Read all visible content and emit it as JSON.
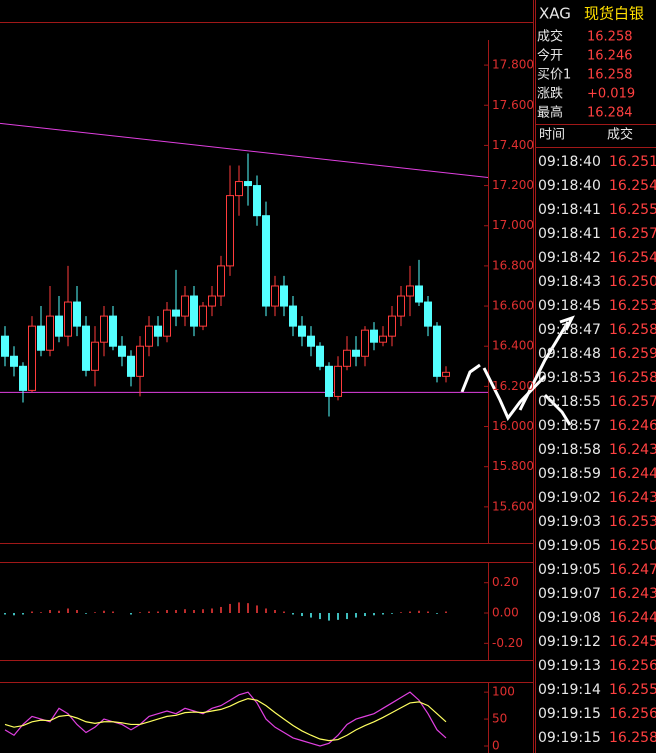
{
  "header": {
    "symbol": "XAG",
    "name": "现货白银"
  },
  "quote": [
    {
      "label": "成交",
      "value": "16.258"
    },
    {
      "label": "今开",
      "value": "16.246"
    },
    {
      "label": "买价1",
      "value": "16.258"
    },
    {
      "label": "涨跌",
      "value": "+0.019"
    },
    {
      "label": "最高",
      "value": "16.284"
    }
  ],
  "trades": {
    "columns": [
      "时间",
      "成交"
    ],
    "rows": [
      [
        "09:18:40",
        "16.251"
      ],
      [
        "09:18:40",
        "16.254"
      ],
      [
        "09:18:41",
        "16.255"
      ],
      [
        "09:18:41",
        "16.257"
      ],
      [
        "09:18:42",
        "16.254"
      ],
      [
        "09:18:43",
        "16.250"
      ],
      [
        "09:18:45",
        "16.253"
      ],
      [
        "09:18:47",
        "16.258"
      ],
      [
        "09:18:48",
        "16.259"
      ],
      [
        "09:18:53",
        "16.258"
      ],
      [
        "09:18:55",
        "16.257"
      ],
      [
        "09:18:57",
        "16.246"
      ],
      [
        "09:18:58",
        "16.243"
      ],
      [
        "09:18:59",
        "16.244"
      ],
      [
        "09:19:02",
        "16.243"
      ],
      [
        "09:19:03",
        "16.253"
      ],
      [
        "09:19:05",
        "16.250"
      ],
      [
        "09:19:05",
        "16.247"
      ],
      [
        "09:19:07",
        "16.243"
      ],
      [
        "09:19:08",
        "16.244"
      ],
      [
        "09:19:12",
        "16.245"
      ],
      [
        "09:19:13",
        "16.256"
      ],
      [
        "09:19:14",
        "16.255"
      ],
      [
        "09:19:15",
        "16.256"
      ],
      [
        "09:19:15",
        "16.258"
      ]
    ]
  },
  "chart_data": [
    {
      "type": "candlestick",
      "up_color": "#ff3c3c",
      "down_color": "#54ffff",
      "ylim": [
        15.42,
        17.915
      ],
      "yticks": [
        {
          "value": 17.8,
          "label": "17.800"
        },
        {
          "value": 17.6,
          "label": "17.600"
        },
        {
          "value": 17.4,
          "label": "17.400"
        },
        {
          "value": 17.2,
          "label": "17.200"
        },
        {
          "value": 17.0,
          "label": "17.000"
        },
        {
          "value": 16.8,
          "label": "16.800"
        },
        {
          "value": 16.6,
          "label": "16.600"
        },
        {
          "value": 16.4,
          "label": "16.400"
        },
        {
          "value": 16.2,
          "label": "16.200"
        },
        {
          "value": 16.0,
          "label": "16.000"
        },
        {
          "value": 15.8,
          "label": "15.800"
        },
        {
          "value": 15.6,
          "label": "15.600"
        }
      ],
      "open": [
        16.45,
        16.35,
        16.3,
        16.18,
        16.5,
        16.38,
        16.55,
        16.45,
        16.62,
        16.5,
        16.28,
        16.42,
        16.55,
        16.4,
        16.35,
        16.25,
        16.4,
        16.5,
        16.45,
        16.58,
        16.55,
        16.65,
        16.5,
        16.6,
        16.65,
        16.8,
        17.15,
        17.22,
        17.2,
        17.05,
        16.6,
        16.7,
        16.6,
        16.5,
        16.45,
        16.4,
        16.3,
        16.15,
        16.3,
        16.38,
        16.35,
        16.48,
        16.42,
        16.45,
        16.55,
        16.65,
        16.7,
        16.62,
        16.5,
        16.25
      ],
      "high": [
        16.5,
        16.4,
        16.32,
        16.55,
        16.6,
        16.7,
        16.65,
        16.8,
        16.7,
        16.55,
        16.5,
        16.6,
        16.6,
        16.45,
        16.38,
        16.45,
        16.55,
        16.55,
        16.62,
        16.78,
        16.7,
        16.7,
        16.62,
        16.7,
        16.85,
        17.3,
        17.3,
        17.36,
        17.25,
        17.12,
        16.75,
        16.75,
        16.65,
        16.55,
        16.5,
        16.42,
        16.32,
        16.35,
        16.45,
        16.45,
        16.5,
        16.52,
        16.5,
        16.6,
        16.7,
        16.8,
        16.83,
        16.65,
        16.52,
        16.3
      ],
      "low": [
        16.3,
        16.25,
        16.12,
        16.17,
        16.35,
        16.35,
        16.42,
        16.4,
        16.45,
        16.25,
        16.2,
        16.35,
        16.38,
        16.3,
        16.2,
        16.15,
        16.35,
        16.4,
        16.42,
        16.5,
        16.5,
        16.45,
        16.48,
        16.55,
        16.6,
        16.75,
        17.05,
        17.1,
        17.0,
        16.55,
        16.55,
        16.55,
        16.45,
        16.4,
        16.35,
        16.28,
        16.05,
        16.13,
        16.28,
        16.3,
        16.3,
        16.38,
        16.4,
        16.4,
        16.5,
        16.55,
        16.6,
        16.45,
        16.22,
        16.22
      ],
      "close": [
        16.35,
        16.3,
        16.18,
        16.5,
        16.38,
        16.55,
        16.45,
        16.62,
        16.5,
        16.28,
        16.42,
        16.55,
        16.4,
        16.35,
        16.25,
        16.4,
        16.5,
        16.45,
        16.58,
        16.55,
        16.65,
        16.5,
        16.6,
        16.65,
        16.8,
        17.15,
        17.22,
        17.2,
        17.05,
        16.6,
        16.7,
        16.6,
        16.5,
        16.45,
        16.4,
        16.3,
        16.15,
        16.3,
        16.38,
        16.35,
        16.48,
        16.42,
        16.45,
        16.55,
        16.65,
        16.7,
        16.62,
        16.5,
        16.25,
        16.27
      ],
      "lines": [
        {
          "color": "#e040e0",
          "values": [
            17.51,
            17.24
          ]
        },
        {
          "color": "#e040e0",
          "values": [
            16.17,
            16.17
          ]
        }
      ]
    },
    {
      "type": "histogram",
      "up_color": "#ff3c3c",
      "down_color": "#54ffff",
      "ylim": [
        -0.31,
        0.33
      ],
      "yticks": [
        {
          "value": 0.2,
          "label": "0.20"
        },
        {
          "value": 0,
          "label": "0.00"
        },
        {
          "value": -0.2,
          "label": "-0.20"
        }
      ],
      "values": [
        -0.01,
        -0.015,
        -0.01,
        0.01,
        0.005,
        0.02,
        0.015,
        0.03,
        0.02,
        -0.005,
        0.005,
        0.015,
        0.01,
        0,
        -0.01,
        0.005,
        0.01,
        0.01,
        0.02,
        0.02,
        0.025,
        0.02,
        0.025,
        0.03,
        0.04,
        0.06,
        0.07,
        0.065,
        0.05,
        0.03,
        0.02,
        0.01,
        -0.01,
        -0.02,
        -0.03,
        -0.04,
        -0.05,
        -0.045,
        -0.04,
        -0.03,
        -0.02,
        -0.015,
        -0.01,
        -0.005,
        0.005,
        0.01,
        0.015,
        0.01,
        -0.005,
        0.01
      ]
    },
    {
      "type": "line",
      "ylim": [
        -13,
        117
      ],
      "yticks": [
        100,
        50,
        0
      ],
      "series": [
        {
          "color": "#e040e0",
          "values": [
            30,
            20,
            40,
            55,
            50,
            45,
            70,
            60,
            40,
            25,
            35,
            50,
            45,
            40,
            30,
            40,
            55,
            60,
            65,
            60,
            70,
            65,
            60,
            70,
            75,
            85,
            95,
            100,
            80,
            50,
            35,
            25,
            15,
            10,
            5,
            0,
            5,
            20,
            40,
            50,
            55,
            60,
            70,
            80,
            90,
            100,
            85,
            60,
            30,
            15
          ]
        },
        {
          "color": "#ffff60",
          "values": [
            40,
            35,
            38,
            45,
            48,
            47,
            55,
            57,
            52,
            45,
            42,
            45,
            45,
            43,
            40,
            40,
            45,
            50,
            55,
            57,
            62,
            63,
            62,
            65,
            68,
            74,
            82,
            88,
            85,
            75,
            62,
            50,
            38,
            28,
            20,
            13,
            10,
            12,
            20,
            30,
            38,
            45,
            53,
            62,
            71,
            80,
            82,
            75,
            60,
            45
          ]
        }
      ]
    }
  ]
}
